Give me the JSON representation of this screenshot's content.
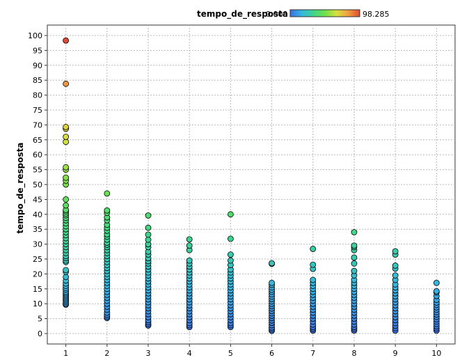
{
  "legend": {
    "label": "tempo_de_resposta",
    "min_label": "0.000",
    "max_label": "98.285",
    "colormap": [
      "#3b6fe0",
      "#36b6e0",
      "#3dd68c",
      "#6fe04a",
      "#d8e040",
      "#f0a040",
      "#e04a30"
    ]
  },
  "chart_data": {
    "type": "scatter",
    "ylabel": "tempo_de_resposta",
    "xlabel": "",
    "xlim": [
      0.55,
      10.45
    ],
    "ylim": [
      -3.5,
      103.5
    ],
    "xticks": [
      "1",
      "2",
      "3",
      "4",
      "5",
      "6",
      "7",
      "8",
      "9",
      "10"
    ],
    "yticks": [
      "0",
      "5",
      "10",
      "15",
      "20",
      "25",
      "30",
      "35",
      "40",
      "45",
      "50",
      "55",
      "60",
      "65",
      "70",
      "75",
      "80",
      "85",
      "90",
      "95",
      "100"
    ],
    "grid": true,
    "color_scale": [
      0.0,
      98.285
    ],
    "marker_edge": "#000000",
    "series": [
      {
        "x": 1,
        "y": [
          98.3,
          83.8,
          69.3,
          68.7,
          66.0,
          64.3,
          55.8,
          55.0,
          52.3,
          51.3,
          50.0,
          45.0,
          43.0,
          41.5,
          41.0,
          40.3,
          39.7,
          38.8,
          38.0,
          37.0,
          36.0,
          35.0,
          34.0,
          33.0,
          32.0,
          31.0,
          30.0,
          29.0,
          28.0,
          27.0,
          26.0,
          25.3,
          24.5,
          24.0,
          21.3,
          20.7,
          19.0,
          17.8,
          16.8,
          16.0,
          15.3,
          14.7,
          14.0,
          13.5,
          13.0,
          12.5,
          12.0,
          11.5,
          11.0,
          10.5,
          10.0,
          9.7
        ]
      },
      {
        "x": 2,
        "y": [
          47.0,
          41.3,
          40.5,
          39.0,
          38.0,
          36.5,
          35.5,
          34.5,
          33.3,
          32.5,
          31.5,
          30.5,
          29.8,
          29.0,
          28.0,
          27.0,
          26.0,
          25.0,
          24.0,
          23.0,
          22.0,
          21.0,
          20.0,
          19.0,
          18.0,
          17.0,
          16.0,
          15.0,
          14.0,
          13.0,
          12.0,
          11.0,
          10.0,
          9.0,
          8.0,
          7.0,
          6.3,
          5.7,
          5.2
        ]
      },
      {
        "x": 3,
        "y": [
          39.6,
          35.5,
          33.2,
          31.5,
          30.0,
          29.0,
          27.5,
          26.5,
          25.3,
          24.3,
          23.5,
          22.5,
          21.5,
          20.5,
          19.5,
          18.5,
          17.5,
          16.5,
          15.5,
          14.5,
          13.5,
          12.5,
          11.5,
          10.5,
          9.5,
          8.5,
          7.5,
          6.5,
          5.5,
          4.5,
          3.8,
          3.2,
          2.7
        ]
      },
      {
        "x": 4,
        "y": [
          31.6,
          29.5,
          28.0,
          24.5,
          23.5,
          22.5,
          21.5,
          20.5,
          19.5,
          18.5,
          17.5,
          16.5,
          15.5,
          14.5,
          13.5,
          12.5,
          11.5,
          10.5,
          9.5,
          8.5,
          7.5,
          6.5,
          5.5,
          4.5,
          3.5,
          2.8,
          2.2
        ]
      },
      {
        "x": 5,
        "y": [
          40.0,
          31.8,
          26.5,
          24.5,
          23.0,
          21.5,
          20.5,
          19.5,
          18.5,
          17.5,
          16.5,
          15.5,
          14.5,
          13.5,
          12.5,
          11.5,
          10.5,
          9.5,
          8.5,
          7.5,
          6.5,
          5.5,
          4.5,
          3.5,
          2.8,
          2.2
        ]
      },
      {
        "x": 6,
        "y": [
          23.6,
          23.4,
          17.0,
          16.3,
          15.5,
          14.7,
          14.0,
          13.2,
          12.4,
          11.6,
          10.8,
          10.0,
          9.2,
          8.4,
          7.6,
          6.8,
          6.0,
          5.2,
          4.4,
          3.6,
          2.8,
          2.0,
          1.4,
          0.9
        ]
      },
      {
        "x": 7,
        "y": [
          28.4,
          23.1,
          21.7,
          18.0,
          17.0,
          16.0,
          15.0,
          14.0,
          13.0,
          12.0,
          11.0,
          10.0,
          9.0,
          8.0,
          7.0,
          6.0,
          5.0,
          4.0,
          3.0,
          2.2,
          1.6,
          1.0
        ]
      },
      {
        "x": 8,
        "y": [
          34.0,
          29.5,
          29.0,
          28.0,
          25.5,
          23.5,
          21.0,
          19.5,
          18.0,
          17.0,
          16.0,
          15.0,
          14.0,
          13.0,
          12.0,
          11.0,
          10.0,
          9.0,
          8.0,
          7.0,
          6.0,
          5.0,
          4.0,
          3.0,
          2.2,
          1.6,
          1.0
        ]
      },
      {
        "x": 9,
        "y": [
          27.6,
          26.5,
          22.8,
          21.8,
          19.5,
          18.0,
          16.5,
          15.5,
          14.5,
          13.5,
          12.5,
          11.5,
          10.5,
          9.5,
          8.5,
          7.5,
          6.5,
          5.5,
          4.5,
          3.5,
          2.6,
          1.8,
          1.0
        ]
      },
      {
        "x": 10,
        "y": [
          17.0,
          14.2,
          13.8,
          12.6,
          11.3,
          10.4,
          9.6,
          8.8,
          8.0,
          7.2,
          6.4,
          5.6,
          4.8,
          4.0,
          3.2,
          2.4,
          1.7,
          1.0
        ]
      }
    ]
  }
}
